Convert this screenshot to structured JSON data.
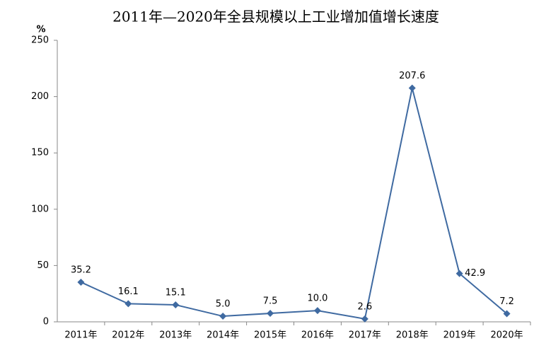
{
  "chart_data": {
    "type": "line",
    "title": "2011年—2020年全县规模以上工业增加值增长速度",
    "y_label": "%",
    "categories": [
      "2011年",
      "2012年",
      "2013年",
      "2014年",
      "2015年",
      "2016年",
      "2017年",
      "2018年",
      "2019年",
      "2020年"
    ],
    "series": [
      {
        "name": "增长速度",
        "color": "#3f6aa1",
        "values": [
          35.2,
          16.1,
          15.1,
          5.0,
          7.5,
          10.0,
          2.6,
          207.6,
          42.9,
          7.2
        ],
        "value_labels": [
          "35.2",
          "16.1",
          "15.1",
          "5.0",
          "7.5",
          "10.0",
          "2.6",
          "207.6",
          "42.9",
          "7.2"
        ]
      }
    ],
    "ylim": [
      0,
      250
    ],
    "yticks": [
      0,
      50,
      100,
      150,
      200,
      250
    ],
    "grid": false
  }
}
